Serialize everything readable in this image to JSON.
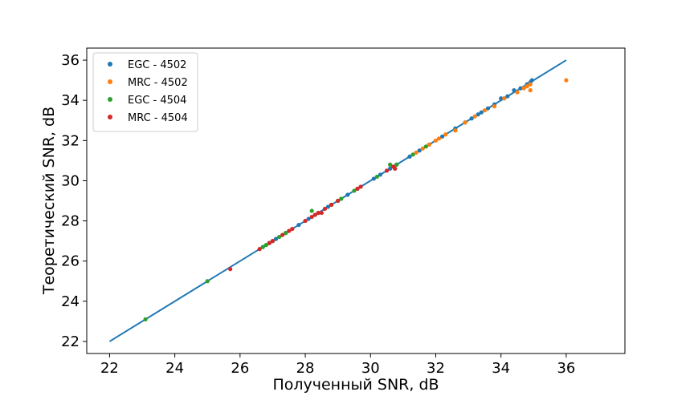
{
  "chart_data": {
    "type": "scatter",
    "xlabel": "Полученный SNR, dB",
    "ylabel": "Теоретический SNR, dB",
    "xlim": [
      21.3,
      37.8
    ],
    "ylim": [
      21.4,
      36.6
    ],
    "xticks": [
      "22",
      "24",
      "26",
      "28",
      "30",
      "32",
      "34",
      "36"
    ],
    "yticks": [
      "22",
      "24",
      "26",
      "28",
      "30",
      "32",
      "34",
      "36"
    ],
    "grid": false,
    "legend_position": "top-left",
    "reference_line": {
      "x": [
        22,
        36
      ],
      "y": [
        22,
        36
      ],
      "color": "#1f77b4"
    },
    "series": [
      {
        "name": "EGC - 4502",
        "color": "#1f77b4",
        "points": [
          [
            26.7,
            26.7
          ],
          [
            26.9,
            26.9
          ],
          [
            27.1,
            27.1
          ],
          [
            27.4,
            27.4
          ],
          [
            27.8,
            27.8
          ],
          [
            28.1,
            28.1
          ],
          [
            28.4,
            28.4
          ],
          [
            28.7,
            28.7
          ],
          [
            29.0,
            29.0
          ],
          [
            29.3,
            29.3
          ],
          [
            29.6,
            29.6
          ],
          [
            30.1,
            30.1
          ],
          [
            30.3,
            30.3
          ],
          [
            30.6,
            30.6
          ],
          [
            30.8,
            30.8
          ],
          [
            31.2,
            31.2
          ],
          [
            31.5,
            31.5
          ],
          [
            31.8,
            31.8
          ],
          [
            32.2,
            32.2
          ],
          [
            32.6,
            32.6
          ],
          [
            32.9,
            32.9
          ],
          [
            33.1,
            33.1
          ],
          [
            33.3,
            33.3
          ],
          [
            33.4,
            33.4
          ],
          [
            33.6,
            33.6
          ],
          [
            33.8,
            33.8
          ],
          [
            34.0,
            34.1
          ],
          [
            34.1,
            34.1
          ],
          [
            34.2,
            34.2
          ],
          [
            34.4,
            34.5
          ],
          [
            34.6,
            34.6
          ],
          [
            34.8,
            34.8
          ],
          [
            34.9,
            34.9
          ],
          [
            34.95,
            35.0
          ]
        ]
      },
      {
        "name": "MRC - 4502",
        "color": "#ff7f0e",
        "points": [
          [
            31.4,
            31.4
          ],
          [
            31.6,
            31.6
          ],
          [
            31.8,
            31.8
          ],
          [
            32.0,
            32.0
          ],
          [
            32.1,
            32.1
          ],
          [
            32.3,
            32.3
          ],
          [
            32.6,
            32.5
          ],
          [
            32.9,
            32.9
          ],
          [
            33.2,
            33.2
          ],
          [
            33.5,
            33.5
          ],
          [
            33.8,
            33.7
          ],
          [
            34.1,
            34.1
          ],
          [
            34.5,
            34.4
          ],
          [
            34.7,
            34.6
          ],
          [
            34.8,
            34.7
          ],
          [
            34.9,
            34.8
          ],
          [
            34.9,
            34.5
          ],
          [
            36.0,
            35.0
          ]
        ]
      },
      {
        "name": "EGC - 4504",
        "color": "#2ca02c",
        "points": [
          [
            23.1,
            23.1
          ],
          [
            25.0,
            25.0
          ],
          [
            26.7,
            26.7
          ],
          [
            26.8,
            26.8
          ],
          [
            26.9,
            26.9
          ],
          [
            27.0,
            27.0
          ],
          [
            27.2,
            27.2
          ],
          [
            27.4,
            27.4
          ],
          [
            28.2,
            28.5
          ],
          [
            28.3,
            28.3
          ],
          [
            28.8,
            28.8
          ],
          [
            29.1,
            29.1
          ],
          [
            29.5,
            29.5
          ],
          [
            30.2,
            30.2
          ],
          [
            30.6,
            30.8
          ],
          [
            30.8,
            30.8
          ],
          [
            31.3,
            31.3
          ],
          [
            31.7,
            31.7
          ]
        ]
      },
      {
        "name": "MRC - 4504",
        "color": "#d62728",
        "points": [
          [
            25.7,
            25.6
          ],
          [
            26.6,
            26.6
          ],
          [
            26.9,
            26.9
          ],
          [
            27.0,
            27.0
          ],
          [
            27.3,
            27.3
          ],
          [
            27.5,
            27.5
          ],
          [
            27.6,
            27.6
          ],
          [
            28.0,
            28.0
          ],
          [
            28.2,
            28.2
          ],
          [
            28.3,
            28.3
          ],
          [
            28.4,
            28.4
          ],
          [
            28.5,
            28.4
          ],
          [
            28.6,
            28.6
          ],
          [
            28.8,
            28.8
          ],
          [
            29.0,
            29.0
          ],
          [
            29.6,
            29.6
          ],
          [
            29.7,
            29.7
          ],
          [
            30.5,
            30.5
          ],
          [
            30.7,
            30.7
          ],
          [
            30.75,
            30.6
          ]
        ]
      }
    ]
  }
}
